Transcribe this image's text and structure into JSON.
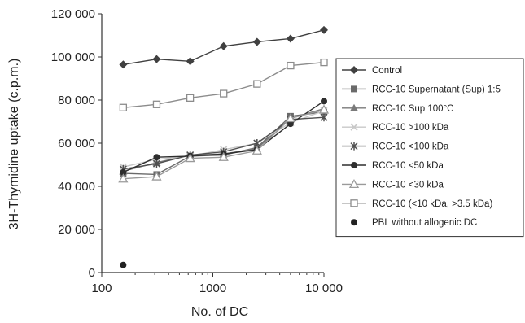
{
  "chart_data": {
    "type": "line",
    "xlabel": "No. of DC",
    "ylabel": "3H-Thymidine uptake (c.p.m.)",
    "x_scale": "log",
    "xlim": [
      100,
      10000
    ],
    "ylim": [
      0,
      120000
    ],
    "x_ticks": [
      "100",
      "1000",
      "10 000"
    ],
    "y_ticks": [
      "0",
      "20 000",
      "40 000",
      "60 000",
      "80 000",
      "100 000",
      "120 000"
    ],
    "x": [
      156,
      312,
      625,
      1250,
      2500,
      5000,
      10000
    ],
    "legend_position": "right",
    "series": [
      {
        "name": "Control",
        "marker": "diamond",
        "color": "#404040",
        "values": [
          96500,
          99000,
          98000,
          105000,
          107000,
          108500,
          112500
        ]
      },
      {
        "name": "RCC-10 Supernatant (Sup) 1:5",
        "marker": "square",
        "color": "#6a6a6a",
        "values": [
          46000,
          45500,
          54000,
          54500,
          58000,
          72500,
          74500
        ]
      },
      {
        "name": "RCC-10 Sup 100°C",
        "marker": "triangle",
        "color": "#7a7a7a",
        "values": [
          47000,
          51000,
          54500,
          55000,
          57500,
          71500,
          76000
        ]
      },
      {
        "name": "RCC-10 >100 kDa",
        "marker": "x",
        "color": "#c8c8c8",
        "values": [
          49000,
          52500,
          54000,
          57000,
          60000,
          69500,
          75000
        ]
      },
      {
        "name": "RCC-10 <100 kDa",
        "marker": "star",
        "color": "#505050",
        "values": [
          48000,
          50500,
          54500,
          56000,
          60000,
          71000,
          72000
        ]
      },
      {
        "name": "RCC-10 <50 kDa",
        "marker": "circle",
        "color": "#2e2e2e",
        "values": [
          46500,
          53500,
          54000,
          55000,
          57000,
          69000,
          79500
        ]
      },
      {
        "name": "RCC-10 <30 kDa",
        "marker": "triangle-open",
        "color": "#9a9a9a",
        "values": [
          43500,
          44500,
          53000,
          53500,
          56500,
          71500,
          75500
        ]
      },
      {
        "name": "RCC-10 (<10 kDa, >3.5 kDa)",
        "marker": "square-open",
        "color": "#8c8c8c",
        "values": [
          76500,
          78000,
          81000,
          83000,
          87500,
          96000,
          97500
        ]
      },
      {
        "name": "PBL without allogenic DC",
        "marker": "dot",
        "color": "#222222",
        "values": [
          3500,
          null,
          null,
          null,
          null,
          null,
          null
        ]
      }
    ]
  }
}
